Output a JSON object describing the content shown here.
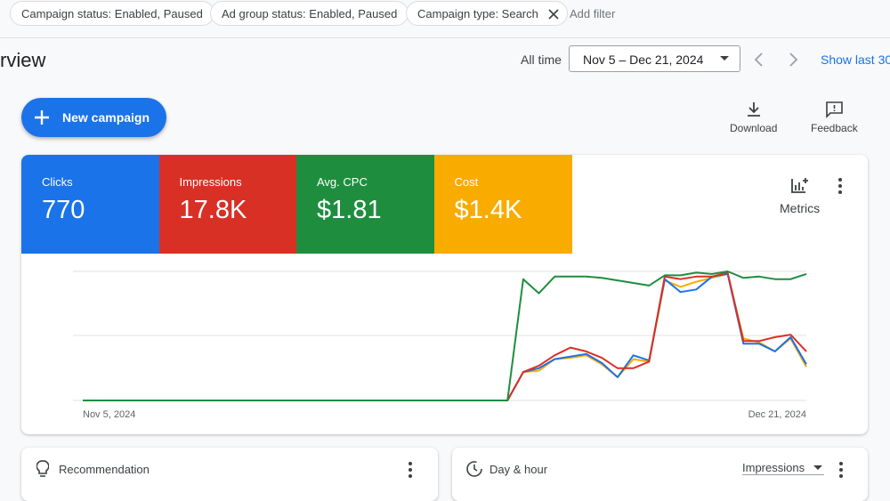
{
  "filters": {
    "chips": [
      "Campaign status: Enabled, Paused",
      "Ad group status: Enabled, Paused",
      "Campaign type: Search"
    ],
    "add": "Add filter"
  },
  "header": {
    "title": "rview",
    "range_label": "All time",
    "date_range": "Nov 5 – Dec 21, 2024",
    "show_last": "Show last 30"
  },
  "actions": {
    "new_campaign": "New campaign",
    "download": "Download",
    "feedback": "Feedback"
  },
  "metrics": [
    {
      "label": "Clicks",
      "value": "770",
      "color": "#1a73e8"
    },
    {
      "label": "Impressions",
      "value": "17.8K",
      "color": "#d93025"
    },
    {
      "label": "Avg. CPC",
      "value": "$1.81",
      "color": "#1e8e3e"
    },
    {
      "label": "Cost",
      "value": "$1.4K",
      "color": "#f9ab00"
    }
  ],
  "metrics_button": "Metrics",
  "chart_data": {
    "type": "line",
    "ylim": [
      0,
      100
    ],
    "categories": [
      "Nov 5, 2024",
      null,
      null,
      null,
      null,
      null,
      null,
      null,
      null,
      null,
      null,
      null,
      null,
      null,
      null,
      null,
      null,
      null,
      null,
      null,
      null,
      null,
      null,
      null,
      null,
      null,
      null,
      null,
      null,
      null,
      null,
      null,
      null,
      null,
      null,
      null,
      null,
      null,
      null,
      null,
      null,
      null,
      null,
      null,
      null,
      null,
      "Dec 21, 2024"
    ],
    "series": [
      {
        "color": "#1e8e3e",
        "values": [
          0,
          0,
          0,
          0,
          0,
          0,
          0,
          0,
          0,
          0,
          0,
          0,
          0,
          0,
          0,
          0,
          0,
          0,
          0,
          0,
          0,
          0,
          0,
          0,
          0,
          0,
          0,
          0,
          94,
          83,
          96,
          96,
          96,
          95,
          93,
          91,
          89,
          97,
          97,
          99,
          98,
          100,
          95,
          96,
          94,
          94,
          98
        ]
      },
      {
        "color": "#d93025",
        "values": [
          0,
          0,
          0,
          0,
          0,
          0,
          0,
          0,
          0,
          0,
          0,
          0,
          0,
          0,
          0,
          0,
          0,
          0,
          0,
          0,
          0,
          0,
          0,
          0,
          0,
          0,
          0,
          0,
          22,
          27,
          35,
          41,
          38,
          33,
          25,
          25,
          30,
          96,
          94,
          96,
          96,
          99,
          46,
          46,
          49,
          51,
          38
        ]
      },
      {
        "color": "#1a73e8",
        "values": [
          0,
          0,
          0,
          0,
          0,
          0,
          0,
          0,
          0,
          0,
          0,
          0,
          0,
          0,
          0,
          0,
          0,
          0,
          0,
          0,
          0,
          0,
          0,
          0,
          0,
          0,
          0,
          0,
          22,
          25,
          32,
          34,
          36,
          29,
          18,
          35,
          31,
          94,
          84,
          86,
          96,
          98,
          44,
          44,
          38,
          49,
          28
        ]
      },
      {
        "color": "#f9ab00",
        "values": [
          0,
          0,
          0,
          0,
          0,
          0,
          0,
          0,
          0,
          0,
          0,
          0,
          0,
          0,
          0,
          0,
          0,
          0,
          0,
          0,
          0,
          0,
          0,
          0,
          0,
          0,
          0,
          0,
          22,
          23,
          32,
          33,
          35,
          28,
          18,
          32,
          30,
          93,
          88,
          92,
          95,
          98,
          48,
          45,
          38,
          48,
          26
        ]
      }
    ]
  },
  "cards": {
    "recommendation": "Recommendation",
    "day_hour": "Day & hour",
    "day_hour_metric": "Impressions"
  }
}
